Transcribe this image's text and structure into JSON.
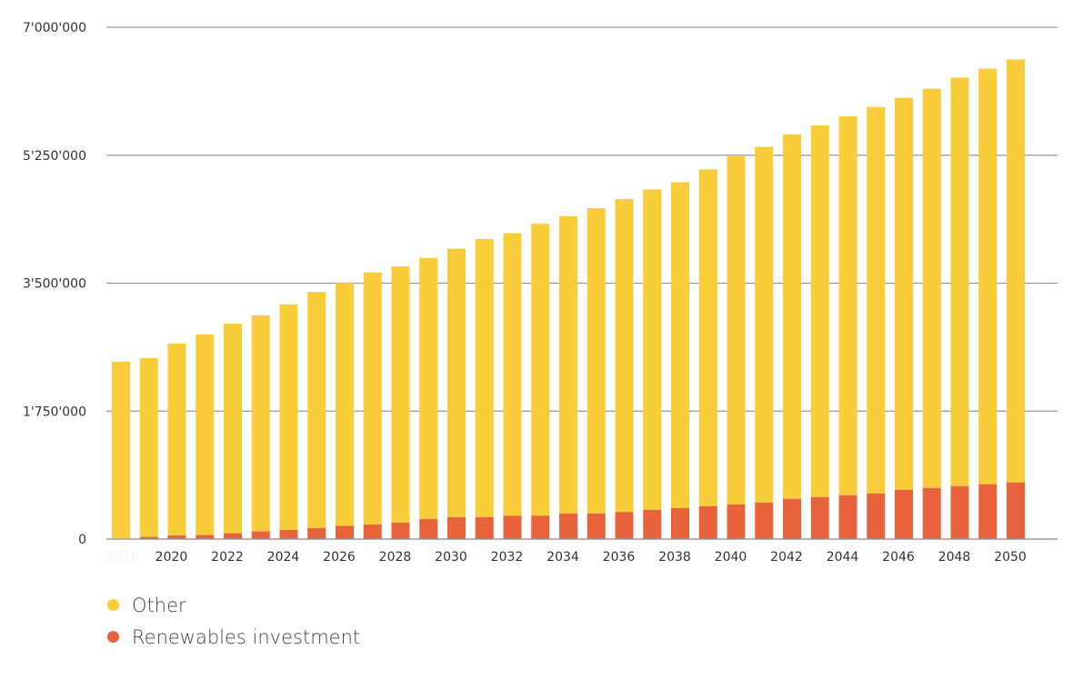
{
  "colors": {
    "other": "#f9cc3a",
    "renewables": "#e8623c",
    "grid": "#999999",
    "axis_text": "#333333"
  },
  "chart_data": {
    "type": "bar",
    "stacked": true,
    "categories": [
      "2018",
      "2019",
      "2020",
      "2021",
      "2022",
      "2023",
      "2024",
      "2025",
      "2026",
      "2027",
      "2028",
      "2029",
      "2030",
      "2031",
      "2032",
      "2033",
      "2034",
      "2035",
      "2036",
      "2037",
      "2038",
      "2039",
      "2040",
      "2041",
      "2042",
      "2043",
      "2044",
      "2045",
      "2046",
      "2047",
      "2048",
      "2049",
      "2050"
    ],
    "x_tick_labels": [
      "2018",
      "2020",
      "2022",
      "2024",
      "2026",
      "2028",
      "2030",
      "2032",
      "2034",
      "2036",
      "2038",
      "2040",
      "2042",
      "2044",
      "2046",
      "2048",
      "2050"
    ],
    "series": [
      {
        "name": "Renewables investment",
        "color": "#e8623c",
        "values": [
          0,
          30000,
          50000,
          55000,
          80000,
          105000,
          125000,
          150000,
          180000,
          200000,
          225000,
          275000,
          300000,
          300000,
          320000,
          320000,
          350000,
          350000,
          370000,
          400000,
          425000,
          450000,
          475000,
          500000,
          550000,
          575000,
          600000,
          625000,
          675000,
          700000,
          725000,
          750000,
          775000
        ]
      },
      {
        "name": "Other",
        "color": "#f9cc3a",
        "values": [
          2425000,
          2445000,
          2625000,
          2745000,
          2866000,
          2955000,
          3085000,
          3230000,
          3323000,
          3448000,
          3505000,
          3571000,
          3672000,
          3805000,
          3863000,
          3992000,
          4066000,
          4176000,
          4280000,
          4381000,
          4455000,
          4606000,
          4760000,
          4865000,
          4985000,
          5084000,
          5184000,
          5285000,
          5360000,
          5459000,
          5585000,
          5684000,
          5785000
        ]
      }
    ],
    "title": "",
    "xlabel": "",
    "ylabel": "",
    "ylim": [
      0,
      7000000
    ],
    "y_ticks": [
      0,
      1750000,
      3500000,
      5250000,
      7000000
    ],
    "y_tick_labels": [
      "0",
      "1'750'000",
      "3'500'000",
      "5'250'000",
      "7'000'000"
    ],
    "grid": true,
    "legend_position": "bottom-left"
  },
  "legend": {
    "items": [
      {
        "label": "Other",
        "color": "#f9cc3a"
      },
      {
        "label": "Renewables investment",
        "color": "#e8623c"
      }
    ]
  }
}
